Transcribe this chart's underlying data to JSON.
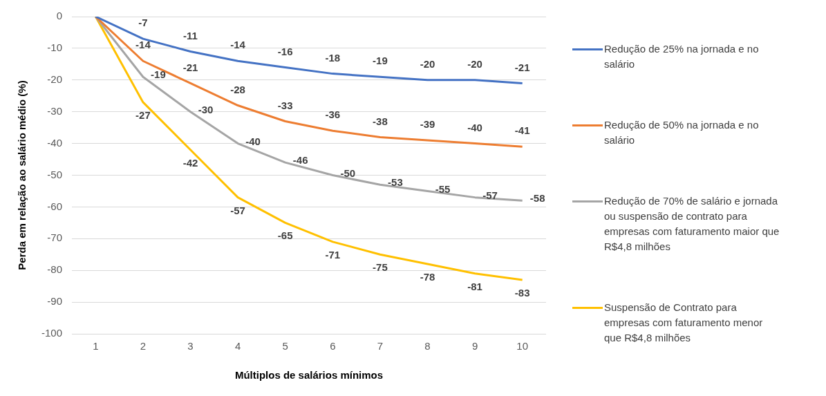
{
  "chart_data": {
    "type": "line",
    "xlabel": "Múltiplos de salários mínimos",
    "ylabel": "Perda em relação ao salário médio (%)",
    "categories": [
      "1",
      "2",
      "3",
      "4",
      "5",
      "6",
      "7",
      "8",
      "9",
      "10"
    ],
    "series": [
      {
        "name": "Redução de 25% na jornada e no salário",
        "color": "#4472c4",
        "values": [
          0,
          -7,
          -11,
          -14,
          -16,
          -18,
          -19,
          -20,
          -20,
          -21
        ],
        "value_labels": [
          null,
          "-7",
          "-11",
          "-14",
          "-16",
          "-18",
          "-19",
          "-20",
          "-20",
          "-21"
        ]
      },
      {
        "name": "Redução de 50% na jornada e no salário",
        "color": "#ed7d31",
        "values": [
          0,
          -14,
          -21,
          -28,
          -33,
          -36,
          -38,
          -39,
          -40,
          -41
        ],
        "value_labels": [
          null,
          "-14",
          "-21",
          "-28",
          "-33",
          "-36",
          "-38",
          "-39",
          "-40",
          "-41"
        ]
      },
      {
        "name": "Redução de 70% de salário e jornada ou suspensão de contrato para empresas com faturamento maior que R$4,8 milhões",
        "color": "#a5a5a5",
        "values": [
          0,
          -19,
          -30,
          -40,
          -46,
          -50,
          -53,
          -55,
          -57,
          -58
        ],
        "value_labels": [
          null,
          "-19",
          "-30",
          "-40",
          "-46",
          "-50",
          "-53",
          "-55",
          "-57",
          "-58"
        ]
      },
      {
        "name": "Suspensão de Contrato para empresas com faturamento menor que R$4,8 milhões",
        "color": "#ffc000",
        "values": [
          0,
          -27,
          -42,
          -57,
          -65,
          -71,
          -75,
          -78,
          -81,
          -83
        ],
        "value_labels": [
          null,
          "-27",
          "-42",
          "-57",
          "-65",
          "-71",
          "-75",
          "-78",
          "-81",
          "-83"
        ]
      }
    ],
    "ylim": [
      -100,
      0
    ],
    "yticks": [
      -100,
      -90,
      -80,
      -70,
      -60,
      -50,
      -40,
      -30,
      -20,
      -10,
      0
    ],
    "grid": "y",
    "legend": "right",
    "marker": "none",
    "line_style": "solid"
  }
}
